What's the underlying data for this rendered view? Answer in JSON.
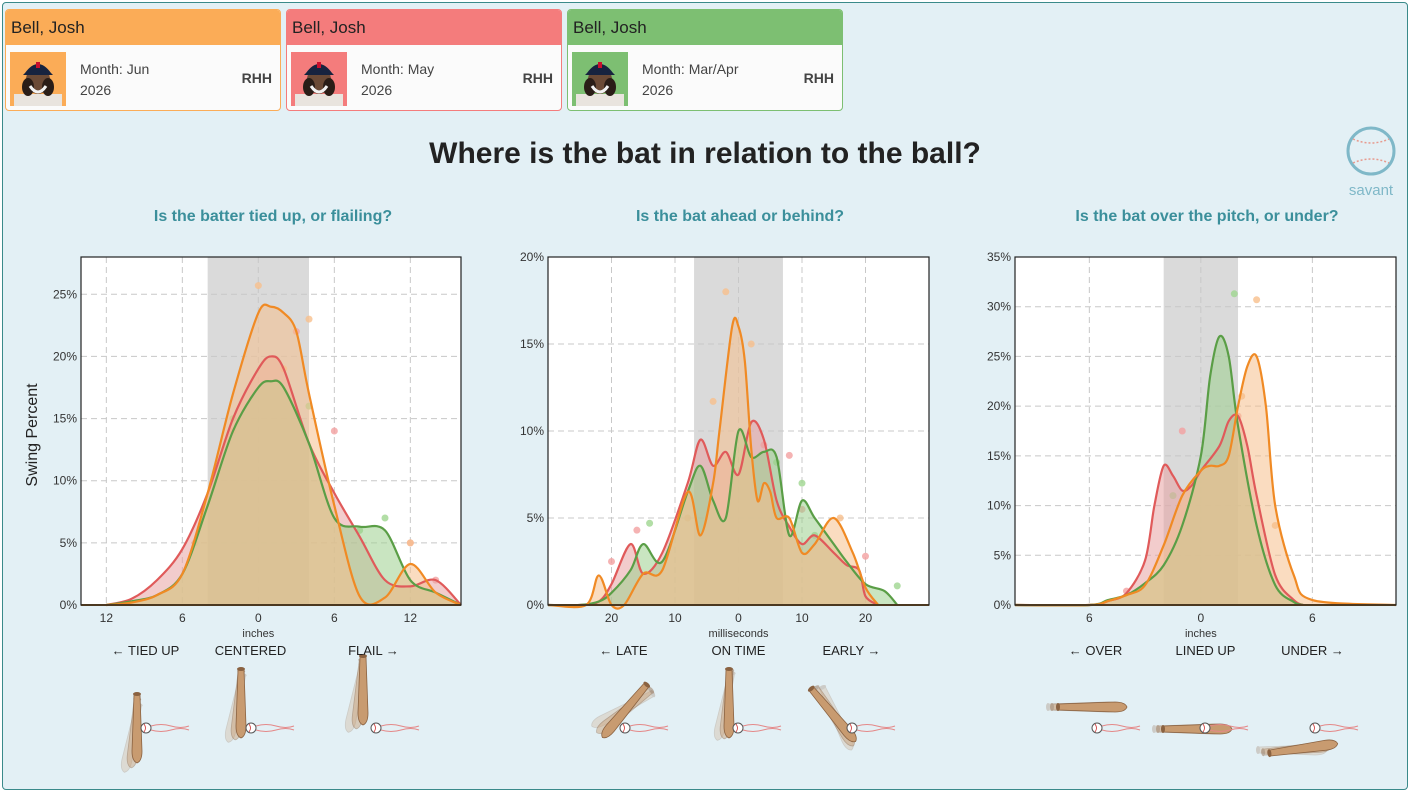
{
  "cards": [
    {
      "name": "Bell, Josh",
      "month": "Month: Jun",
      "year": "2026",
      "hand": "RHH",
      "color": "#fbac57"
    },
    {
      "name": "Bell, Josh",
      "month": "Month: May",
      "year": "2026",
      "hand": "RHH",
      "color": "#f47c7c"
    },
    {
      "name": "Bell, Josh",
      "month": "Month: Mar/Apr",
      "year": "2026",
      "hand": "RHH",
      "color": "#7dbf72"
    }
  ],
  "page": {
    "title": "Where is the bat in relation to the ball?",
    "logo_text": "savant"
  },
  "chart_data": [
    {
      "type": "area",
      "title": "Is the batter tied up, or flailing?",
      "ylabel": "Swing Percent",
      "xlabel": "inches",
      "xlim": [
        14,
        -16
      ],
      "ylim": [
        0,
        28
      ],
      "reversed": true,
      "xticks": [
        {
          "v": 12,
          "label": "12"
        },
        {
          "v": 6,
          "label": "6"
        },
        {
          "v": 0,
          "label": "0"
        },
        {
          "v": -6,
          "label": "6"
        },
        {
          "v": -12,
          "label": "12"
        }
      ],
      "yticks": [
        0,
        5,
        10,
        15,
        20,
        25
      ],
      "band": [
        4,
        -4
      ],
      "labels": {
        "left": "← TIED UP",
        "center": "CENTERED",
        "right": "FLAIL →"
      },
      "series": [
        {
          "color": "#e05a5a",
          "fill": "#e8a3a3",
          "x": [
            12,
            10,
            8,
            6,
            4,
            2,
            0,
            -1,
            -2,
            -4,
            -6,
            -8,
            -10,
            -12,
            -14,
            -16
          ],
          "y": [
            0,
            0.5,
            2,
            4.5,
            9,
            15,
            19,
            20,
            19,
            13,
            9,
            5.5,
            2,
            1.5,
            2,
            0
          ]
        },
        {
          "color": "#5a9e46",
          "fill": "#9ccf8e",
          "x": [
            12,
            10,
            8,
            6,
            4,
            2,
            0,
            -1,
            -2,
            -4,
            -6,
            -8,
            -10,
            -12,
            -14,
            -16
          ],
          "y": [
            0,
            0.3,
            0.8,
            2.5,
            8,
            14,
            17.5,
            18,
            17.5,
            13,
            7,
            6.3,
            6,
            2,
            1,
            0
          ]
        },
        {
          "color": "#f08a24",
          "fill": "#f5c08d",
          "x": [
            12,
            10,
            8,
            6,
            4,
            2,
            0,
            -1,
            -2,
            -3,
            -4,
            -6,
            -8,
            -10,
            -12,
            -14,
            -16
          ],
          "y": [
            0,
            0.2,
            0.8,
            2.5,
            9,
            17,
            23.5,
            24,
            23.5,
            22,
            17,
            8,
            0.7,
            0.6,
            3.3,
            1,
            0
          ]
        }
      ],
      "dots": [
        {
          "c": "red",
          "x": -3,
          "y": 22
        },
        {
          "c": "red",
          "x": -6,
          "y": 14
        },
        {
          "c": "red",
          "x": 2,
          "y": 14
        },
        {
          "c": "red",
          "x": -12,
          "y": 5
        },
        {
          "c": "red",
          "x": -14,
          "y": 2
        },
        {
          "c": "green",
          "x": 2,
          "y": 15
        },
        {
          "c": "green",
          "x": -10,
          "y": 7
        },
        {
          "c": "green",
          "x": -4,
          "y": 16
        },
        {
          "c": "green",
          "x": -8,
          "y": 6
        },
        {
          "c": "orange",
          "x": 0,
          "y": 25.7
        },
        {
          "c": "orange",
          "x": -4,
          "y": 23
        },
        {
          "c": "orange",
          "x": -2,
          "y": 19
        },
        {
          "c": "orange",
          "x": -12,
          "y": 5
        },
        {
          "c": "orange",
          "x": 5,
          "y": 5
        }
      ]
    },
    {
      "type": "area",
      "title": "Is the bat ahead or behind?",
      "xlabel": "milliseconds",
      "xlim": [
        30,
        -30
      ],
      "ylim": [
        0,
        20
      ],
      "reversed": true,
      "xticks": [
        {
          "v": 20,
          "label": "20"
        },
        {
          "v": 10,
          "label": "10"
        },
        {
          "v": 0,
          "label": "0"
        },
        {
          "v": -10,
          "label": "10"
        },
        {
          "v": -20,
          "label": "20"
        }
      ],
      "yticks": [
        0,
        5,
        10,
        15,
        20
      ],
      "band": [
        7,
        -7
      ],
      "labels": {
        "left": "← LATE",
        "center": "ON TIME",
        "right": "EARLY →"
      },
      "series": [
        {
          "color": "#e05a5a",
          "fill": "#e8a3a3",
          "x": [
            30,
            25,
            22,
            20,
            17,
            15,
            12,
            8,
            6,
            4,
            2,
            0,
            -2,
            -4,
            -6,
            -8,
            -10,
            -12,
            -15,
            -17,
            -19,
            -20,
            -22
          ],
          "y": [
            0,
            0,
            0.2,
            1.2,
            3.5,
            1.8,
            3,
            7,
            9.5,
            8,
            8.8,
            7.5,
            10.5,
            9.5,
            6,
            4.5,
            3.5,
            4,
            3,
            2.3,
            2,
            0.5,
            0
          ]
        },
        {
          "color": "#5a9e46",
          "fill": "#9ccf8e",
          "x": [
            30,
            25,
            22,
            20,
            17,
            15,
            12,
            8,
            6,
            4,
            2,
            0,
            -2,
            -4,
            -6,
            -8,
            -10,
            -12,
            -15,
            -17,
            -20,
            -23,
            -25
          ],
          "y": [
            0,
            0,
            0.2,
            0.7,
            2,
            3.5,
            2.5,
            6.5,
            8,
            6,
            5,
            10,
            8.5,
            8.8,
            8.5,
            4,
            6,
            5,
            3.5,
            2.5,
            1.2,
            0.8,
            0
          ]
        },
        {
          "color": "#f08a24",
          "fill": "#f5c08d",
          "x": [
            30,
            24,
            22,
            20,
            18,
            15,
            12,
            8,
            6,
            4,
            3,
            1,
            0,
            -1,
            -2,
            -3,
            -4,
            -5,
            -6,
            -8,
            -10,
            -12,
            -15,
            -18,
            -20,
            -22
          ],
          "y": [
            0,
            0,
            1.7,
            0,
            0,
            1.8,
            2,
            6.5,
            4,
            7,
            10,
            16,
            16,
            14,
            9,
            6,
            7,
            6.5,
            5,
            5,
            3,
            3.5,
            5,
            3,
            1,
            0
          ]
        }
      ],
      "dots": [
        {
          "c": "red",
          "x": -8,
          "y": 8.6
        },
        {
          "c": "red",
          "x": -20,
          "y": 2.8
        },
        {
          "c": "red",
          "x": 20,
          "y": 2.5
        },
        {
          "c": "red",
          "x": 16,
          "y": 4.3
        },
        {
          "c": "red",
          "x": -4,
          "y": 9.2
        },
        {
          "c": "red",
          "x": -10,
          "y": 5.5
        },
        {
          "c": "green",
          "x": -10,
          "y": 7
        },
        {
          "c": "green",
          "x": 14,
          "y": 4.7
        },
        {
          "c": "green",
          "x": -25,
          "y": 1.1
        },
        {
          "c": "green",
          "x": -6,
          "y": 8.2
        },
        {
          "c": "green",
          "x": -12,
          "y": 4
        },
        {
          "c": "orange",
          "x": 2,
          "y": 18
        },
        {
          "c": "orange",
          "x": 4,
          "y": 11.7
        },
        {
          "c": "orange",
          "x": -2,
          "y": 15
        },
        {
          "c": "orange",
          "x": -16,
          "y": 5
        },
        {
          "c": "orange",
          "x": 8,
          "y": 5
        }
      ]
    },
    {
      "type": "area",
      "title": "Is the bat over the pitch, or under?",
      "xlabel": "inches",
      "xlim": [
        -10,
        10.5
      ],
      "ylim": [
        0,
        35
      ],
      "reversed": false,
      "xticks": [
        {
          "v": -6,
          "label": "6"
        },
        {
          "v": 0,
          "label": "0"
        },
        {
          "v": 6,
          "label": "6"
        }
      ],
      "yticks": [
        0,
        5,
        10,
        15,
        20,
        25,
        30,
        35
      ],
      "band": [
        -2,
        2
      ],
      "labels": {
        "left": "← OVER",
        "center": "LINED UP",
        "right": "UNDER →"
      },
      "series": [
        {
          "color": "#e05a5a",
          "fill": "#e8a3a3",
          "x": [
            -10,
            -6,
            -5,
            -4,
            -3,
            -2.5,
            -2,
            -1.5,
            -1,
            -0.5,
            0,
            1,
            1.5,
            2,
            2.5,
            3,
            4,
            5,
            5.5
          ],
          "y": [
            0,
            0,
            0.4,
            1.2,
            4.5,
            10,
            14,
            13,
            11.5,
            12,
            13.5,
            16,
            18.5,
            19,
            16,
            11,
            3,
            0.5,
            0
          ]
        },
        {
          "color": "#5a9e46",
          "fill": "#9ccf8e",
          "x": [
            -10,
            -6,
            -5,
            -4,
            -3,
            -2,
            -1,
            0,
            0.5,
            1,
            1.5,
            2,
            3,
            4,
            5,
            5.5
          ],
          "y": [
            0,
            0,
            0.5,
            1,
            2.2,
            4,
            8,
            15,
            23,
            27,
            25,
            18,
            8,
            2,
            0.3,
            0
          ]
        },
        {
          "color": "#f08a24",
          "fill": "#f5c08d",
          "x": [
            -10,
            -6,
            -5,
            -4,
            -3,
            -2,
            -1,
            0,
            0.5,
            1,
            1.5,
            2,
            2.5,
            3,
            3.5,
            4,
            5,
            6,
            10.5
          ],
          "y": [
            0,
            0,
            0.4,
            1,
            2,
            6,
            11,
            13.5,
            14,
            14,
            15,
            20,
            24,
            25,
            20,
            10,
            3,
            0.5,
            0
          ]
        }
      ],
      "dots": [
        {
          "c": "red",
          "x": -1,
          "y": 17.5
        },
        {
          "c": "red",
          "x": 2,
          "y": 19
        },
        {
          "c": "red",
          "x": -4,
          "y": 1.4
        },
        {
          "c": "green",
          "x": 1.8,
          "y": 31.3
        },
        {
          "c": "green",
          "x": -1.5,
          "y": 11
        },
        {
          "c": "orange",
          "x": 3,
          "y": 30.7
        },
        {
          "c": "orange",
          "x": 2.2,
          "y": 21
        },
        {
          "c": "orange",
          "x": 4,
          "y": 8
        }
      ]
    }
  ]
}
